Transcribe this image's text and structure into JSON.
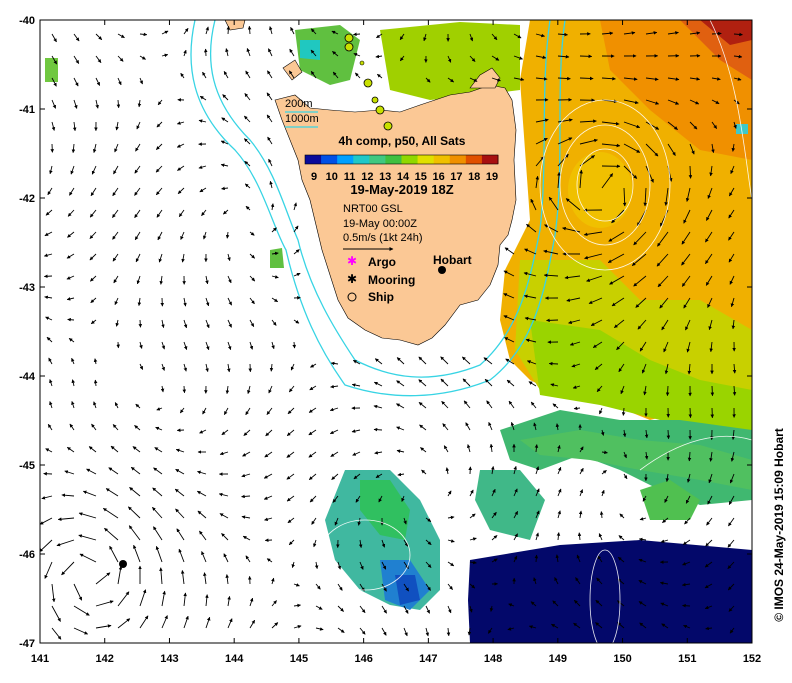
{
  "map": {
    "lon_ticks": [
      "141",
      "142",
      "143",
      "144",
      "145",
      "146",
      "147",
      "148",
      "149",
      "150",
      "151",
      "152"
    ],
    "lat_ticks": [
      "-40",
      "-41",
      "-42",
      "-43",
      "-44",
      "-45",
      "-46",
      "-47"
    ],
    "lon_range": [
      141,
      152
    ],
    "lat_range": [
      -47,
      -40
    ],
    "credit": "© IMOS 24-May-2019 15:09 Hobart"
  },
  "legend": {
    "contour_200": "200m",
    "contour_1000": "1000m",
    "product": "4h comp, p50, All Sats",
    "colorbar_ticks": [
      "9",
      "10",
      "11",
      "12",
      "13",
      "14",
      "15",
      "16",
      "17",
      "18",
      "19"
    ],
    "datetime": "19-May-2019 18Z",
    "source": "NRT00 GSL",
    "current_time": "19-May 00:00Z",
    "scale_label": "0.5m/s (1kt 24h)",
    "argo_label": "Argo",
    "mooring_label": "Mooring",
    "ship_label": "Ship",
    "city_label": "Hobart"
  },
  "colors": {
    "land": "#fbc895",
    "contour": "#38d4e4",
    "low_cut": "#03086a",
    "argo": "#ff00ff",
    "ship_marker": "#c8e000",
    "colorbar": [
      "#0a0a9a",
      "#0050e6",
      "#00a0ff",
      "#20c8c8",
      "#40c880",
      "#40c040",
      "#90d800",
      "#e0e000",
      "#f0c000",
      "#f09000",
      "#e05000",
      "#a81010"
    ]
  }
}
